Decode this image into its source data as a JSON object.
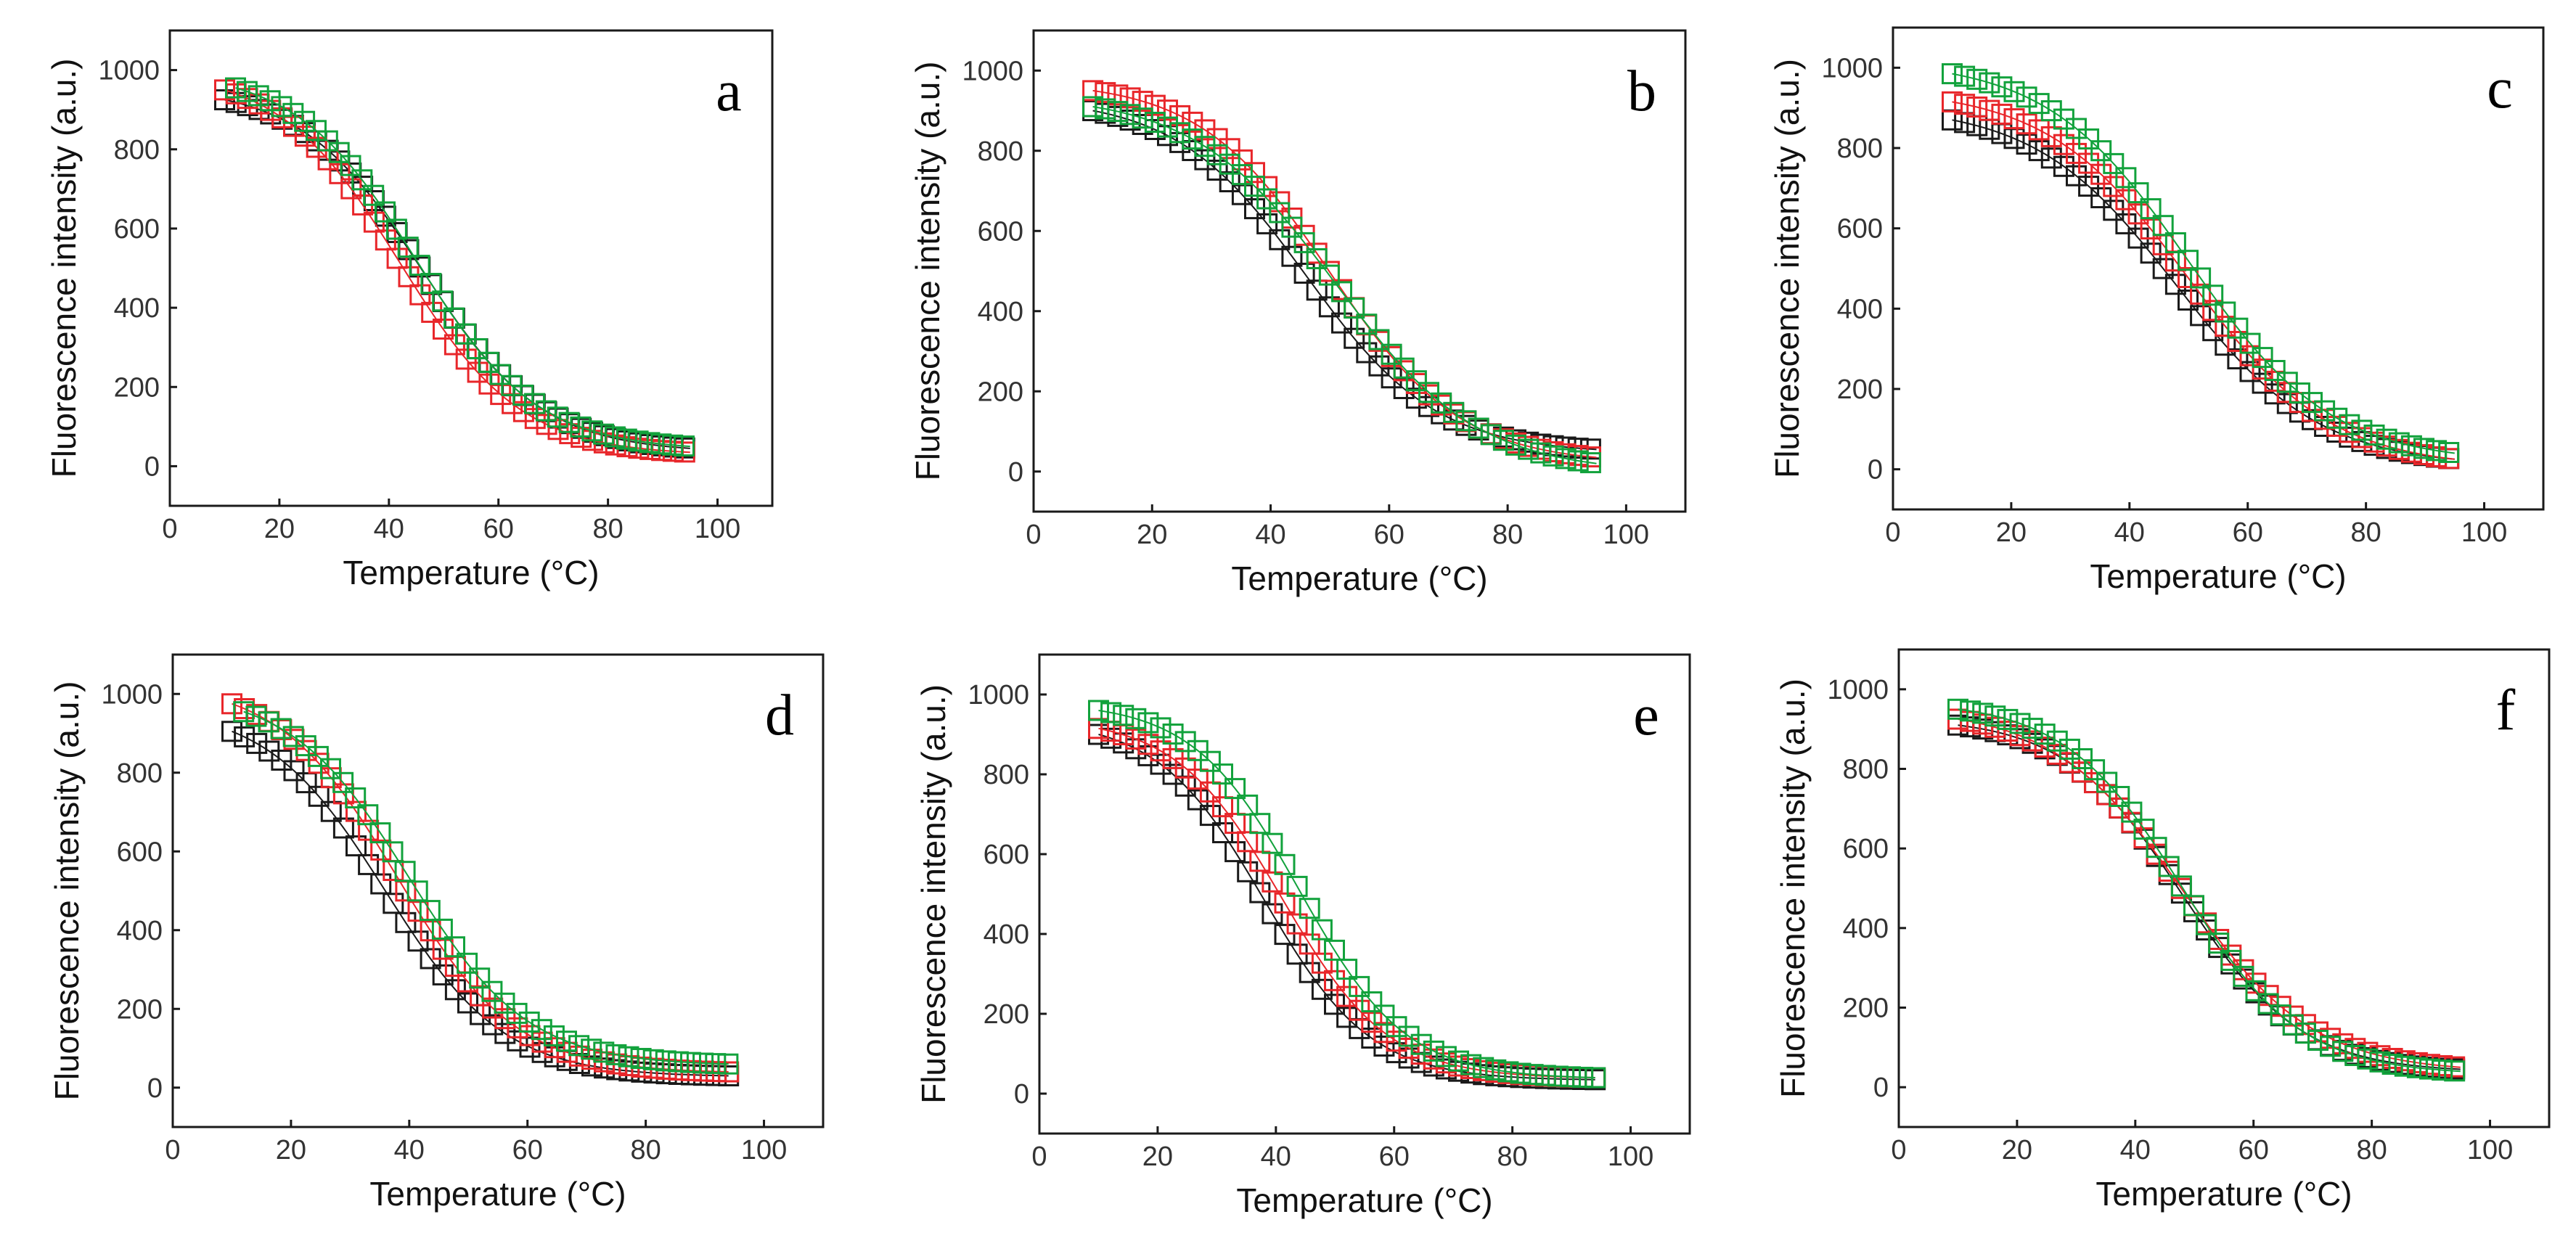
{
  "figure": {
    "panel_count": 6
  },
  "chart_data": [
    {
      "type": "scatter",
      "panel": "a",
      "xlabel": "Temperature (°C)",
      "ylabel": "Fluorescence intensity (a.u.)",
      "xlim": [
        0,
        110
      ],
      "ylim": [
        -100,
        1100
      ],
      "xticks": [
        "0",
        "20",
        "40",
        "60",
        "80",
        "100"
      ],
      "yticks": [
        "0",
        "200",
        "400",
        "600",
        "800",
        "1000"
      ],
      "series": [
        {
          "name": "black",
          "color": "#1a1a1a",
          "top": 1000,
          "bottom": 30,
          "tm": 46,
          "slope": 11,
          "x0": 10,
          "x1": 95,
          "start": 925,
          "end": 45
        },
        {
          "name": "red",
          "color": "#e8262a",
          "top": 1000,
          "bottom": 25,
          "tm": 42,
          "slope": 11,
          "x0": 10,
          "x1": 95,
          "start": 950,
          "end": 35
        },
        {
          "name": "green",
          "color": "#12a23c",
          "top": 1010,
          "bottom": 35,
          "tm": 45,
          "slope": 11,
          "x0": 12,
          "x1": 95,
          "start": 955,
          "end": 50
        }
      ]
    },
    {
      "type": "scatter",
      "panel": "b",
      "xlabel": "Temperature (°C)",
      "ylabel": "Fluorescence intensity (a.u.)",
      "xlim": [
        0,
        110
      ],
      "ylim": [
        -100,
        1100
      ],
      "xticks": [
        "0",
        "20",
        "40",
        "60",
        "80",
        "100"
      ],
      "yticks": [
        "0",
        "200",
        "400",
        "600",
        "800",
        "1000"
      ],
      "series": [
        {
          "name": "black",
          "color": "#1a1a1a",
          "top": 960,
          "bottom": 50,
          "tm": 46,
          "slope": 11,
          "x0": 10,
          "x1": 95,
          "start": 900,
          "end": 55
        },
        {
          "name": "red",
          "color": "#e8262a",
          "top": 990,
          "bottom": 35,
          "tm": 50,
          "slope": 11,
          "x0": 10,
          "x1": 95,
          "start": 950,
          "end": 35
        },
        {
          "name": "green",
          "color": "#12a23c",
          "top": 960,
          "bottom": 20,
          "tm": 51,
          "slope": 12,
          "x0": 10,
          "x1": 95,
          "start": 910,
          "end": 20
        }
      ]
    },
    {
      "type": "scatter",
      "panel": "c",
      "xlabel": "Temperature (°C)",
      "ylabel": "Fluorescence intensity (a.u.)",
      "xlim": [
        0,
        110
      ],
      "ylim": [
        -100,
        1100
      ],
      "xticks": [
        "0",
        "20",
        "40",
        "60",
        "80",
        "100"
      ],
      "yticks": [
        "0",
        "200",
        "400",
        "600",
        "800",
        "1000"
      ],
      "series": [
        {
          "name": "black",
          "color": "#1a1a1a",
          "top": 950,
          "bottom": 20,
          "tm": 48,
          "slope": 12,
          "x0": 10,
          "x1": 95,
          "start": 870,
          "end": 25
        },
        {
          "name": "red",
          "color": "#e8262a",
          "top": 1000,
          "bottom": 20,
          "tm": 50,
          "slope": 12,
          "x0": 10,
          "x1": 95,
          "start": 915,
          "end": 25
        },
        {
          "name": "green",
          "color": "#12a23c",
          "top": 1060,
          "bottom": 30,
          "tm": 50,
          "slope": 12,
          "x0": 10,
          "x1": 95,
          "start": 985,
          "end": 40
        }
      ]
    },
    {
      "type": "scatter",
      "panel": "d",
      "xlabel": "Temperature (°C)",
      "ylabel": "Fluorescence intensity (a.u.)",
      "xlim": [
        0,
        110
      ],
      "ylim": [
        -100,
        1100
      ],
      "xticks": [
        "0",
        "20",
        "40",
        "60",
        "80",
        "100"
      ],
      "yticks": [
        "0",
        "200",
        "400",
        "600",
        "800",
        "1000"
      ],
      "series": [
        {
          "name": "black",
          "color": "#1a1a1a",
          "top": 980,
          "bottom": 20,
          "tm": 36,
          "slope": 10,
          "x0": 10,
          "x1": 94,
          "start": 905,
          "end": 30
        },
        {
          "name": "red",
          "color": "#e8262a",
          "top": 1020,
          "bottom": 30,
          "tm": 38,
          "slope": 10,
          "x0": 10,
          "x1": 94,
          "start": 975,
          "end": 40
        },
        {
          "name": "green",
          "color": "#12a23c",
          "top": 1000,
          "bottom": 50,
          "tm": 40,
          "slope": 10,
          "x0": 12,
          "x1": 94,
          "start": 955,
          "end": 60
        }
      ]
    },
    {
      "type": "scatter",
      "panel": "e",
      "xlabel": "Temperature (°C)",
      "ylabel": "Fluorescence intensity (a.u.)",
      "xlim": [
        0,
        110
      ],
      "ylim": [
        -100,
        1100
      ],
      "xticks": [
        "0",
        "20",
        "40",
        "60",
        "80",
        "100"
      ],
      "yticks": [
        "0",
        "200",
        "400",
        "600",
        "800",
        "1000"
      ],
      "series": [
        {
          "name": "black",
          "color": "#1a1a1a",
          "top": 1000,
          "bottom": 30,
          "tm": 38,
          "slope": 9,
          "x0": 10,
          "x1": 94,
          "start": 900,
          "end": 35
        },
        {
          "name": "red",
          "color": "#e8262a",
          "top": 1000,
          "bottom": 30,
          "tm": 41,
          "slope": 9,
          "x0": 10,
          "x1": 94,
          "start": 915,
          "end": 40
        },
        {
          "name": "green",
          "color": "#12a23c",
          "top": 1030,
          "bottom": 30,
          "tm": 44,
          "slope": 9,
          "x0": 10,
          "x1": 94,
          "start": 960,
          "end": 40
        }
      ]
    },
    {
      "type": "scatter",
      "panel": "f",
      "xlabel": "Temperature (°C)",
      "ylabel": "Fluorescence intensity (a.u.)",
      "xlim": [
        0,
        110
      ],
      "ylim": [
        -100,
        1100
      ],
      "xticks": [
        "0",
        "20",
        "40",
        "60",
        "80",
        "100"
      ],
      "yticks": [
        "0",
        "200",
        "400",
        "600",
        "800",
        "1000"
      ],
      "series": [
        {
          "name": "black",
          "color": "#1a1a1a",
          "top": 960,
          "bottom": 40,
          "tm": 48,
          "slope": 10,
          "x0": 10,
          "x1": 95,
          "start": 910,
          "end": 45
        },
        {
          "name": "red",
          "color": "#e8262a",
          "top": 980,
          "bottom": 40,
          "tm": 48,
          "slope": 11,
          "x0": 10,
          "x1": 95,
          "start": 925,
          "end": 50
        },
        {
          "name": "green",
          "color": "#12a23c",
          "top": 1000,
          "bottom": 30,
          "tm": 48,
          "slope": 10,
          "x0": 10,
          "x1": 95,
          "start": 950,
          "end": 40
        }
      ]
    }
  ]
}
